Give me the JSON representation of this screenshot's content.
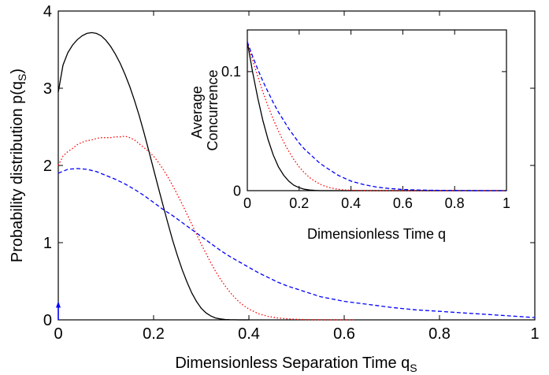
{
  "chart_data": [
    {
      "type": "line",
      "title": "",
      "xlabel": "Dimensionless Separation Time q",
      "xlabel_subscript": "S",
      "ylabel": "Probability distribution p(q",
      "ylabel_subscript": "S",
      "ylabel_suffix": ")",
      "xlim": [
        0,
        1
      ],
      "ylim": [
        0,
        4
      ],
      "xticks": [
        "0",
        "0.2",
        "0.4",
        "0.6",
        "0.8",
        "1"
      ],
      "yticks": [
        "0",
        "1",
        "2",
        "3",
        "4"
      ],
      "grid": false,
      "legend": "none",
      "series": [
        {
          "color": "#000000",
          "dash": "solid",
          "x": [
            0,
            0.01,
            0.02,
            0.03,
            0.04,
            0.05,
            0.06,
            0.07,
            0.08,
            0.09,
            0.1,
            0.11,
            0.12,
            0.13,
            0.14,
            0.15,
            0.16,
            0.17,
            0.18,
            0.19,
            0.2,
            0.21,
            0.22,
            0.23,
            0.24,
            0.25,
            0.26,
            0.27,
            0.28,
            0.29,
            0.3,
            0.31,
            0.32,
            0.33,
            0.34,
            0.35,
            0.36,
            0.37,
            0.38,
            0.4
          ],
          "y": [
            2.95,
            3.3,
            3.46,
            3.56,
            3.63,
            3.68,
            3.71,
            3.72,
            3.71,
            3.68,
            3.62,
            3.54,
            3.44,
            3.32,
            3.18,
            3.02,
            2.84,
            2.64,
            2.42,
            2.19,
            1.95,
            1.71,
            1.48,
            1.25,
            1.03,
            0.83,
            0.65,
            0.49,
            0.35,
            0.24,
            0.15,
            0.09,
            0.05,
            0.025,
            0.012,
            0.005,
            0.002,
            0.001,
            0,
            0
          ]
        },
        {
          "color": "#ff0000",
          "dash": "dotted",
          "x": [
            0,
            0.01,
            0.02,
            0.03,
            0.04,
            0.05,
            0.06,
            0.07,
            0.08,
            0.09,
            0.1,
            0.11,
            0.12,
            0.13,
            0.14,
            0.15,
            0.16,
            0.17,
            0.18,
            0.19,
            0.2,
            0.21,
            0.22,
            0.23,
            0.24,
            0.25,
            0.26,
            0.27,
            0.28,
            0.29,
            0.3,
            0.31,
            0.32,
            0.33,
            0.34,
            0.35,
            0.36,
            0.37,
            0.38,
            0.39,
            0.4,
            0.42,
            0.44,
            0.46,
            0.48,
            0.5,
            0.52,
            0.55,
            0.58,
            0.6,
            0.62
          ],
          "y": [
            2.0,
            2.12,
            2.18,
            2.22,
            2.27,
            2.3,
            2.32,
            2.33,
            2.35,
            2.36,
            2.36,
            2.36,
            2.37,
            2.37,
            2.38,
            2.36,
            2.33,
            2.28,
            2.23,
            2.18,
            2.12,
            2.04,
            1.95,
            1.85,
            1.74,
            1.62,
            1.5,
            1.37,
            1.24,
            1.11,
            0.98,
            0.86,
            0.74,
            0.63,
            0.53,
            0.44,
            0.36,
            0.29,
            0.23,
            0.18,
            0.14,
            0.08,
            0.045,
            0.025,
            0.013,
            0.007,
            0.003,
            0.001,
            0,
            0,
            0
          ]
        },
        {
          "color": "#0000ff",
          "dash": "dashed",
          "x": [
            0,
            0.02,
            0.04,
            0.06,
            0.08,
            0.1,
            0.12,
            0.14,
            0.16,
            0.18,
            0.2,
            0.22,
            0.24,
            0.26,
            0.28,
            0.3,
            0.32,
            0.34,
            0.36,
            0.38,
            0.4,
            0.42,
            0.44,
            0.46,
            0.48,
            0.5,
            0.55,
            0.6,
            0.65,
            0.7,
            0.75,
            0.8,
            0.85,
            0.9,
            0.95,
            1.0
          ],
          "y": [
            1.9,
            1.95,
            1.96,
            1.95,
            1.92,
            1.87,
            1.82,
            1.76,
            1.69,
            1.61,
            1.52,
            1.43,
            1.35,
            1.26,
            1.17,
            1.08,
            0.99,
            0.9,
            0.82,
            0.75,
            0.68,
            0.61,
            0.55,
            0.49,
            0.44,
            0.4,
            0.3,
            0.24,
            0.2,
            0.16,
            0.13,
            0.11,
            0.09,
            0.07,
            0.05,
            0.03
          ]
        }
      ],
      "marker": {
        "x": 0,
        "y": 0.22,
        "color": "#0000ff"
      }
    },
    {
      "type": "line",
      "title": "",
      "xlabel": "Dimensionless Time q",
      "ylabel": "Average Concurrence",
      "ylabel_lines": [
        "Average",
        "Concurrence"
      ],
      "xlim": [
        0,
        1
      ],
      "ylim": [
        0,
        0.135
      ],
      "xticks": [
        "0",
        "0.2",
        "0.4",
        "0.6",
        "0.8",
        "1"
      ],
      "yticks": [
        "0",
        "0.1"
      ],
      "ytick_values": [
        0,
        0.1
      ],
      "grid": false,
      "legend": "none",
      "series": [
        {
          "color": "#000000",
          "dash": "solid",
          "x": [
            0,
            0.02,
            0.04,
            0.06,
            0.08,
            0.1,
            0.12,
            0.14,
            0.16,
            0.18,
            0.2,
            0.22,
            0.24,
            0.26,
            0.28,
            0.3,
            1.0
          ],
          "y": [
            0.125,
            0.1,
            0.078,
            0.059,
            0.043,
            0.03,
            0.02,
            0.013,
            0.008,
            0.0045,
            0.0025,
            0.0012,
            0.0005,
            0.0002,
            0,
            0,
            0
          ]
        },
        {
          "color": "#ff0000",
          "dash": "dotted",
          "x": [
            0,
            0.02,
            0.04,
            0.06,
            0.08,
            0.1,
            0.12,
            0.14,
            0.16,
            0.18,
            0.2,
            0.22,
            0.24,
            0.26,
            0.28,
            0.3,
            0.32,
            0.34,
            0.36,
            0.38,
            0.4,
            0.45,
            0.5,
            1.0
          ],
          "y": [
            0.125,
            0.11,
            0.096,
            0.083,
            0.071,
            0.06,
            0.05,
            0.041,
            0.033,
            0.026,
            0.02,
            0.015,
            0.011,
            0.008,
            0.0055,
            0.0037,
            0.0024,
            0.0015,
            0.0009,
            0.0005,
            0.0003,
            0.0001,
            0,
            0
          ]
        },
        {
          "color": "#0000ff",
          "dash": "dashed",
          "x": [
            0,
            0.02,
            0.04,
            0.06,
            0.08,
            0.1,
            0.12,
            0.14,
            0.16,
            0.18,
            0.2,
            0.22,
            0.24,
            0.26,
            0.28,
            0.3,
            0.35,
            0.4,
            0.45,
            0.5,
            0.55,
            0.6,
            0.65,
            0.7,
            0.8,
            0.9,
            1.0
          ],
          "y": [
            0.125,
            0.113,
            0.102,
            0.092,
            0.083,
            0.074,
            0.066,
            0.059,
            0.052,
            0.046,
            0.04,
            0.035,
            0.031,
            0.027,
            0.023,
            0.02,
            0.013,
            0.008,
            0.005,
            0.003,
            0.0018,
            0.001,
            0.0006,
            0.0003,
            0.0001,
            0,
            0
          ]
        }
      ]
    }
  ]
}
